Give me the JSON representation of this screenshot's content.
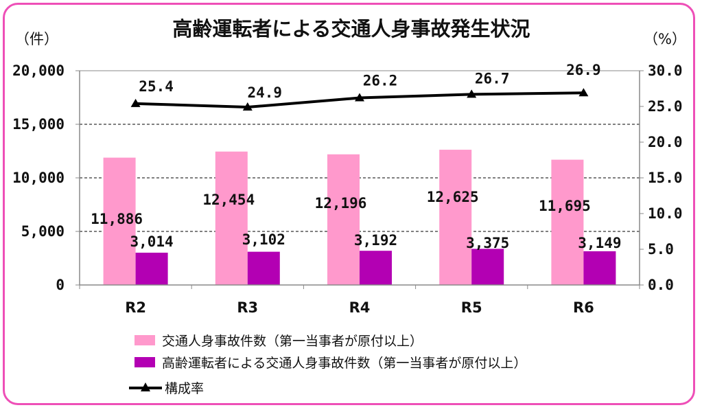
{
  "chart_data": {
    "type": "bar",
    "title": "高齢運転者による交通人身事故発生状況",
    "y_unit_left": "（件）",
    "y_unit_right": "（%）",
    "categories": [
      "R2",
      "R3",
      "R4",
      "R5",
      "R6"
    ],
    "ylim_left": [
      0,
      20000
    ],
    "ylim_right": [
      0,
      30
    ],
    "y_ticks_left": [
      0,
      5000,
      10000,
      15000,
      20000
    ],
    "y_tick_labels_left": [
      "0",
      "5,000",
      "10,000",
      "15,000",
      "20,000"
    ],
    "y_ticks_right": [
      0,
      5,
      10,
      15,
      20,
      25,
      30
    ],
    "y_tick_labels_right": [
      "0.0",
      "5.0",
      "10.0",
      "15.0",
      "20.0",
      "25.0",
      "30.0"
    ],
    "grid": "horizontal dashed",
    "series": [
      {
        "name": "交通人身事故件数（第一当事者が原付以上）",
        "kind": "bar",
        "axis": "left",
        "color": "#ff99cc",
        "values": [
          11886,
          12454,
          12196,
          12625,
          11695
        ],
        "labels": [
          "11,886",
          "12,454",
          "12,196",
          "12,625",
          "11,695"
        ]
      },
      {
        "name": "高齢運転者による交通人身事故件数（第一当事者が原付以上）",
        "kind": "bar",
        "axis": "left",
        "color": "#b300b3",
        "values": [
          3014,
          3102,
          3192,
          3375,
          3149
        ],
        "labels": [
          "3,014",
          "3,102",
          "3,192",
          "3,375",
          "3,149"
        ]
      },
      {
        "name": "構成率",
        "kind": "line",
        "axis": "right",
        "color": "#000000",
        "marker": "triangle",
        "values": [
          25.4,
          24.9,
          26.2,
          26.7,
          26.9
        ],
        "labels": [
          "25.4",
          "24.9",
          "26.2",
          "26.7",
          "26.9"
        ]
      }
    ],
    "legend_position": "bottom"
  },
  "colors": {
    "border": "#ee4fb7",
    "bar1": "#ff99cc",
    "bar2": "#b300b3",
    "line": "#000000"
  }
}
